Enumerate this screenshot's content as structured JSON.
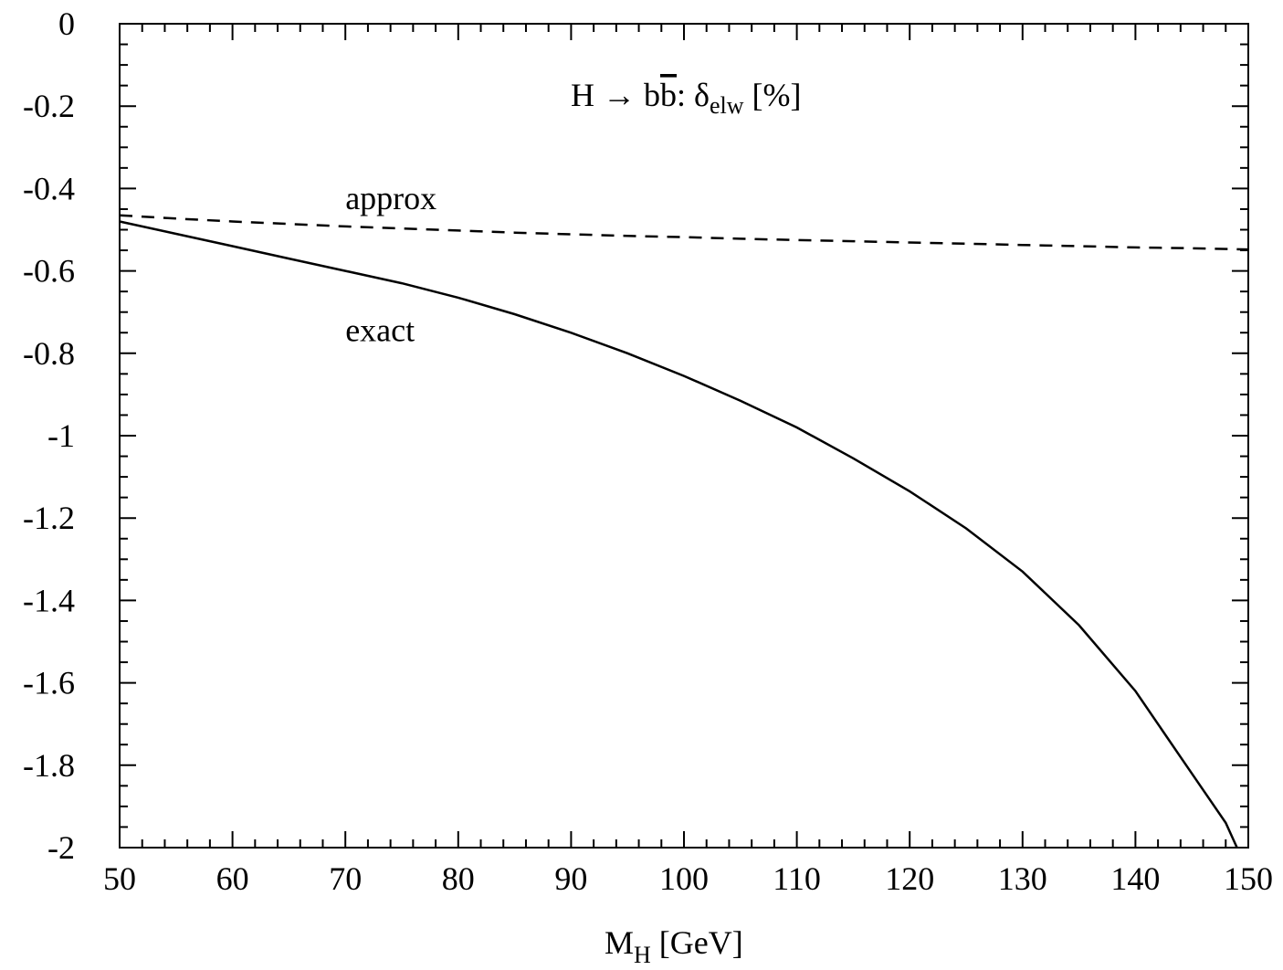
{
  "chart_data": {
    "type": "line",
    "title": {
      "main": "H → b",
      "bbar": "b",
      "colon": ": δ",
      "sub": "elw",
      "unit": " [%]"
    },
    "xlabel": {
      "main": "M",
      "sub": "H",
      "unit": " [GeV]"
    },
    "ylabel": "",
    "xlim": [
      50,
      150
    ],
    "ylim": [
      -2,
      0
    ],
    "xticks": [
      "50",
      "60",
      "70",
      "80",
      "90",
      "100",
      "110",
      "120",
      "130",
      "140",
      "150"
    ],
    "yticks": [
      "0",
      "-0.2",
      "-0.4",
      "-0.6",
      "-0.8",
      "-1",
      "-1.2",
      "-1.4",
      "-1.6",
      "-1.8",
      "-2"
    ],
    "xtick_values": [
      50,
      60,
      70,
      80,
      90,
      100,
      110,
      120,
      130,
      140,
      150
    ],
    "ytick_values": [
      0,
      -0.2,
      -0.4,
      -0.6,
      -0.8,
      -1,
      -1.2,
      -1.4,
      -1.6,
      -1.8,
      -2
    ],
    "grid": false,
    "series": [
      {
        "name": "approx",
        "style": "dashed",
        "color": "#000000",
        "x": [
          50,
          55,
          60,
          65,
          70,
          75,
          80,
          85,
          90,
          95,
          100,
          105,
          110,
          115,
          120,
          125,
          130,
          135,
          140,
          145,
          150
        ],
        "y": [
          -0.465,
          -0.473,
          -0.48,
          -0.486,
          -0.492,
          -0.497,
          -0.502,
          -0.507,
          -0.511,
          -0.515,
          -0.518,
          -0.522,
          -0.525,
          -0.528,
          -0.531,
          -0.534,
          -0.537,
          -0.54,
          -0.543,
          -0.545,
          -0.548
        ]
      },
      {
        "name": "exact",
        "style": "solid",
        "color": "#000000",
        "x": [
          50,
          55,
          60,
          65,
          70,
          75,
          80,
          85,
          90,
          95,
          100,
          105,
          110,
          115,
          120,
          125,
          130,
          135,
          140,
          142,
          144,
          146,
          148,
          149
        ],
        "y": [
          -0.48,
          -0.51,
          -0.54,
          -0.57,
          -0.6,
          -0.63,
          -0.665,
          -0.705,
          -0.75,
          -0.8,
          -0.855,
          -0.915,
          -0.98,
          -1.055,
          -1.135,
          -1.225,
          -1.33,
          -1.46,
          -1.62,
          -1.7,
          -1.78,
          -1.86,
          -1.94,
          -2.0
        ]
      }
    ],
    "annotations": [
      {
        "text": "approx",
        "x": 70,
        "y": -0.45
      },
      {
        "text": "exact",
        "x": 70,
        "y": -0.77
      }
    ]
  }
}
